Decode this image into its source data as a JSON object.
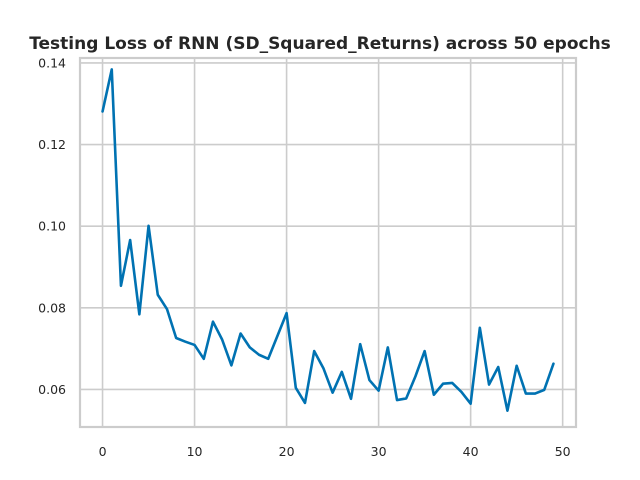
{
  "chart_data": {
    "type": "line",
    "title": "Testing Loss of RNN (SD_Squared_Returns) across 50 epochs",
    "xlabel": "",
    "ylabel": "",
    "xlim": [
      -2.45,
      51.45
    ],
    "ylim": [
      0.0508,
      0.1412
    ],
    "xticks": [
      0,
      10,
      20,
      30,
      40,
      50
    ],
    "yticks": [
      0.06,
      0.08,
      0.1,
      0.12,
      0.14
    ],
    "grid": true,
    "series_color": "#0072b2",
    "series": [
      {
        "values": [
          0.1281,
          0.1384,
          0.0854,
          0.0966,
          0.0784,
          0.1001,
          0.0832,
          0.0797,
          0.0726,
          0.0717,
          0.0709,
          0.0675,
          0.0766,
          0.0722,
          0.0659,
          0.0737,
          0.0703,
          0.0685,
          0.0675,
          0.0731,
          0.0787,
          0.0604,
          0.0567,
          0.0694,
          0.0652,
          0.0592,
          0.0643,
          0.0577,
          0.0711,
          0.0623,
          0.0597,
          0.0703,
          0.0574,
          0.0578,
          0.0632,
          0.0694,
          0.0587,
          0.0614,
          0.0616,
          0.0594,
          0.0565,
          0.0751,
          0.0612,
          0.0655,
          0.0548,
          0.0658,
          0.059,
          0.059,
          0.0599,
          0.0663
        ]
      }
    ]
  }
}
